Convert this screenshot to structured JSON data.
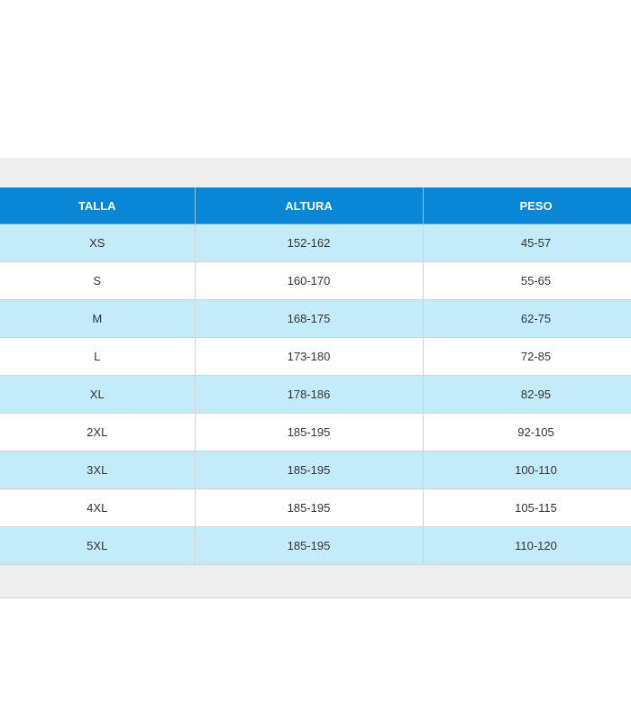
{
  "colors": {
    "header_bg": "#0a86d6",
    "row_odd_bg": "#c4ebfa",
    "row_even_bg": "#ffffff",
    "panel_bg": "#eeeeee"
  },
  "table": {
    "headers": [
      "TALLA",
      "ALTURA",
      "PESO"
    ],
    "rows": [
      [
        "XS",
        "152-162",
        "45-57"
      ],
      [
        "S",
        "160-170",
        "55-65"
      ],
      [
        "M",
        "168-175",
        "62-75"
      ],
      [
        "L",
        "173-180",
        "72-85"
      ],
      [
        "XL",
        "178-186",
        "82-95"
      ],
      [
        "2XL",
        "185-195",
        "92-105"
      ],
      [
        "3XL",
        "185-195",
        "100-110"
      ],
      [
        "4XL",
        "185-195",
        "105-115"
      ],
      [
        "5XL",
        "185-195",
        "110-120"
      ]
    ]
  }
}
